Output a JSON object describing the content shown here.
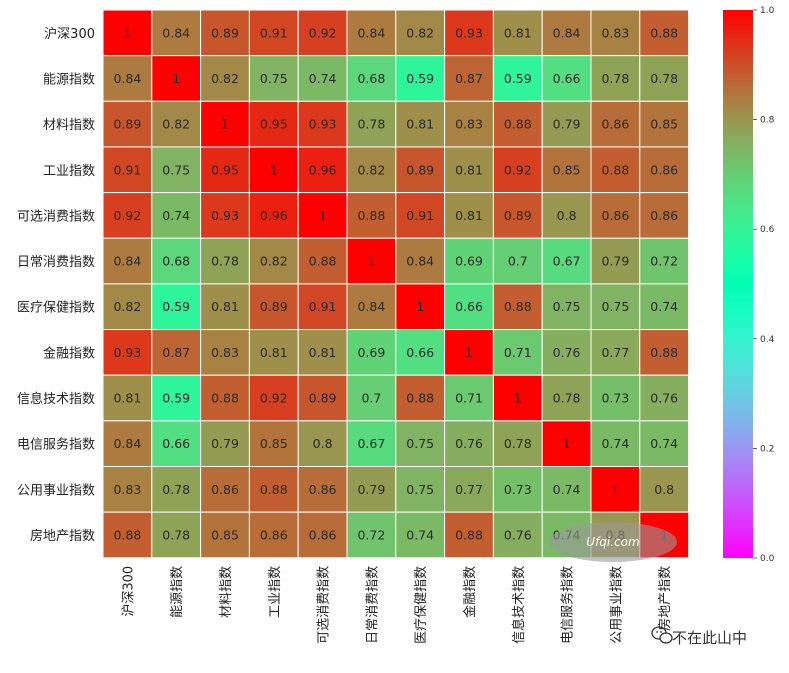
{
  "chart_data": {
    "type": "heatmap",
    "title": "",
    "xlabel": "",
    "ylabel": "",
    "labels": [
      "沪深300",
      "能源指数",
      "材料指数",
      "工业指数",
      "可选消费指数",
      "日常消费指数",
      "医疗保健指数",
      "金融指数",
      "信息技术指数",
      "电信服务指数",
      "公用事业指数",
      "房地产指数"
    ],
    "matrix": [
      [
        1,
        0.84,
        0.89,
        0.91,
        0.92,
        0.84,
        0.82,
        0.93,
        0.81,
        0.84,
        0.83,
        0.88
      ],
      [
        0.84,
        1,
        0.82,
        0.75,
        0.74,
        0.68,
        0.59,
        0.87,
        0.59,
        0.66,
        0.78,
        0.78
      ],
      [
        0.89,
        0.82,
        1,
        0.95,
        0.93,
        0.78,
        0.81,
        0.83,
        0.88,
        0.79,
        0.86,
        0.85
      ],
      [
        0.91,
        0.75,
        0.95,
        1,
        0.96,
        0.82,
        0.89,
        0.81,
        0.92,
        0.85,
        0.88,
        0.86
      ],
      [
        0.92,
        0.74,
        0.93,
        0.96,
        1,
        0.88,
        0.91,
        0.81,
        0.89,
        0.8,
        0.86,
        0.86
      ],
      [
        0.84,
        0.68,
        0.78,
        0.82,
        0.88,
        1,
        0.84,
        0.69,
        0.7,
        0.67,
        0.79,
        0.72
      ],
      [
        0.82,
        0.59,
        0.81,
        0.89,
        0.91,
        0.84,
        1,
        0.66,
        0.88,
        0.75,
        0.75,
        0.74
      ],
      [
        0.93,
        0.87,
        0.83,
        0.81,
        0.81,
        0.69,
        0.66,
        1,
        0.71,
        0.76,
        0.77,
        0.88
      ],
      [
        0.81,
        0.59,
        0.88,
        0.92,
        0.89,
        0.7,
        0.88,
        0.71,
        1,
        0.78,
        0.73,
        0.76
      ],
      [
        0.84,
        0.66,
        0.79,
        0.85,
        0.8,
        0.67,
        0.75,
        0.76,
        0.78,
        1,
        0.74,
        0.74
      ],
      [
        0.83,
        0.78,
        0.86,
        0.88,
        0.86,
        0.79,
        0.75,
        0.77,
        0.73,
        0.74,
        1,
        0.8
      ],
      [
        0.88,
        0.78,
        0.85,
        0.86,
        0.86,
        0.72,
        0.74,
        0.88,
        0.76,
        0.74,
        0.8,
        1
      ]
    ],
    "colormap": "rainbow",
    "vmin": 0,
    "vmax": 1,
    "colorbar_ticks": [
      "0.0",
      "0.2",
      "0.4",
      "0.6",
      "0.8",
      "1.0"
    ],
    "annotations": true
  },
  "watermark": {
    "text": "Ufqi.com"
  },
  "brand": {
    "text": "不在此山中"
  },
  "colors": {
    "cell_border": "#ffffff",
    "text": "#2a2a2a"
  }
}
